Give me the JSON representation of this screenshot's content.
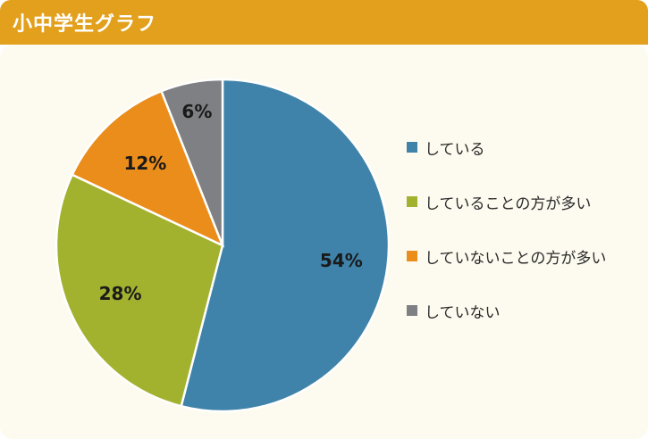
{
  "header": {
    "title": "小中学生グラフ"
  },
  "colors": {
    "header_bg": "#e2a01c",
    "panel_bg": "#fdfbef",
    "slice_border": "#ffffff"
  },
  "chart_data": {
    "type": "pie",
    "title": "",
    "legend_position": "right",
    "slices": [
      {
        "name": "している",
        "value": 54,
        "label": "54%",
        "color": "#3f83aa"
      },
      {
        "name": "していることの方が多い",
        "value": 28,
        "label": "28%",
        "color": "#a2b22f"
      },
      {
        "name": "していないことの方が多い",
        "value": 12,
        "label": "12%",
        "color": "#ea8d1b"
      },
      {
        "name": "していない",
        "value": 6,
        "label": "6%",
        "color": "#7f8083"
      }
    ]
  }
}
